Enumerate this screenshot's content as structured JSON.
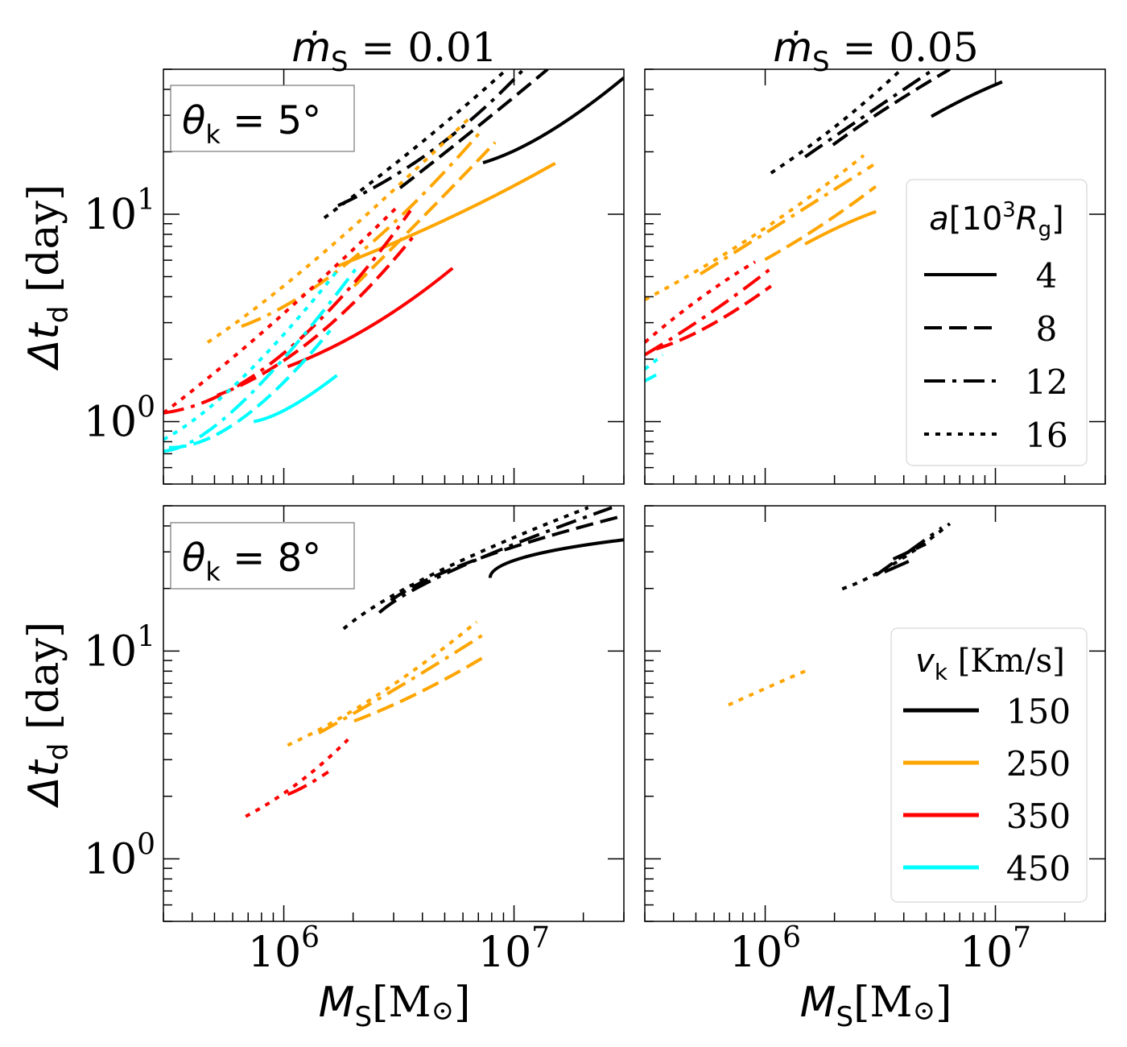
{
  "chart_data": {
    "type": "line",
    "layout": "2x2 grid",
    "shared_xlabel": "M_S[M_⊙]",
    "shared_ylabel": "Δt_d [day]",
    "xscale": "log",
    "yscale": "log",
    "xlim": [
      300000,
      30000000
    ],
    "ylim": [
      0.5,
      50
    ],
    "x_ticks": [
      {
        "value": 1000000,
        "label": "10",
        "exp": "6"
      },
      {
        "value": 10000000,
        "label": "10",
        "exp": "7"
      }
    ],
    "y_ticks": [
      {
        "value": 1,
        "label": "10",
        "exp": "0"
      },
      {
        "value": 10,
        "label": "10",
        "exp": "1"
      }
    ],
    "column_titles": [
      {
        "symbol": "ṁ",
        "sub": "S",
        "text": " = 0.01"
      },
      {
        "symbol": "ṁ",
        "sub": "S",
        "text": " = 0.05"
      }
    ],
    "row_labels": [
      {
        "symbol": "θ",
        "sub": "k",
        "text": " =  5°"
      },
      {
        "symbol": "θ",
        "sub": "k",
        "text": " =  8°"
      }
    ],
    "x_label": {
      "symbol": "M",
      "sub": "S",
      "text": "[M",
      "odot": "⊙",
      "close": "]"
    },
    "y_label": {
      "symbol": "Δt",
      "sub": "d",
      "text": " [day]"
    },
    "colors": {
      "150": "#000000",
      "250": "#FFA500",
      "350": "#FF0000",
      "450": "#00FFFF"
    },
    "linestyles": {
      "4": "solid",
      "8": "dashed",
      "12": "dashdot",
      "16": "dotted"
    },
    "legend_a": {
      "title_symbol": "a",
      "title_text": "[10",
      "title_exp": "3",
      "title_R": "R",
      "title_sub": "g",
      "title_close": "]",
      "placement": "center-right of top-right panel",
      "entries": [
        {
          "label": "4",
          "style": "solid"
        },
        {
          "label": "8",
          "style": "dashed"
        },
        {
          "label": "12",
          "style": "dashdot"
        },
        {
          "label": "16",
          "style": "dotted"
        }
      ]
    },
    "legend_v": {
      "title_symbol": "v",
      "title_sub": "k",
      "title_text": " [Km/s]",
      "placement": "lower-right of bottom-right panel",
      "entries": [
        {
          "label": "150",
          "color": "#000000"
        },
        {
          "label": "250",
          "color": "#FFA500"
        },
        {
          "label": "350",
          "color": "#FF0000"
        },
        {
          "label": "450",
          "color": "#00FFFF"
        }
      ]
    },
    "panels": [
      {
        "id": "theta5_m001",
        "series": [
          {
            "v": "150",
            "a": "4",
            "x": [
              7330000.0,
              14000000.0,
              30000000.0
            ],
            "y": [
              17.7,
              24.7,
              45.5
            ]
          },
          {
            "v": "150",
            "a": "8",
            "x": [
              3200000.0,
              6760000.0,
              14000000.0
            ],
            "y": [
              13.4,
              25.8,
              50
            ]
          },
          {
            "v": "150",
            "a": "12",
            "x": [
              1720000.0,
              4520000.0,
              11000000.0
            ],
            "y": [
              11.0,
              20.7,
              50
            ]
          },
          {
            "v": "150",
            "a": "16",
            "x": [
              1500000.0,
              3850000.0,
              9300000.0
            ],
            "y": [
              9.6,
              21.6,
              50
            ]
          },
          {
            "v": "250",
            "a": "4",
            "x": [
              1720000.0,
              5300000.0,
              15100000.0
            ],
            "y": [
              5.63,
              9.65,
              17.6
            ]
          },
          {
            "v": "250",
            "a": "8",
            "x": [
              2020000.0,
              4170000.0,
              8280000.0
            ],
            "y": [
              4.5,
              10.1,
              22.2
            ]
          },
          {
            "v": "250",
            "a": "12",
            "x": [
              655000.0,
              2020000.0,
              7330000.0
            ],
            "y": [
              2.88,
              6.17,
              25.8
            ]
          },
          {
            "v": "250",
            "a": "16",
            "x": [
              467000.0,
              1470000.0,
              6500000.0
            ],
            "y": [
              2.41,
              6.45,
              29.6
            ]
          },
          {
            "v": "350",
            "a": "4",
            "x": [
              1040000.0,
              2380000.0,
              5410000.0
            ],
            "y": [
              1.84,
              2.88,
              5.49
            ]
          },
          {
            "v": "350",
            "a": "8",
            "x": [
              514000.0,
              1350000.0,
              3620000.0
            ],
            "y": [
              1.34,
              2.52,
              7.71
            ]
          },
          {
            "v": "350",
            "a": "12",
            "x": [
              300000.0,
              980000.0,
              3550000.0
            ],
            "y": [
              1.1,
              2.1,
              10.4
            ]
          },
          {
            "v": "350",
            "a": "16",
            "x": [
              300000.0,
              904000.0,
              3150000.0
            ],
            "y": [
              1.1,
              3.01,
              11.0
            ]
          },
          {
            "v": "450",
            "a": "4",
            "x": [
              740000.0,
              1060000.0,
              1700000.0
            ],
            "y": [
              1.0,
              1.17,
              1.67
            ]
          },
          {
            "v": "450",
            "a": "8",
            "x": [
              317000.0,
              655000.0,
              1590000.0
            ],
            "y": [
              0.75,
              1.03,
              2.75
            ]
          },
          {
            "v": "450",
            "a": "12",
            "x": [
              300000.0,
              655000.0,
              2100000.0
            ],
            "y": [
              0.72,
              1.23,
              5.63
            ]
          },
          {
            "v": "450",
            "a": "16",
            "x": [
              300000.0,
              655000.0,
              1720000.0
            ],
            "y": [
              0.82,
              1.61,
              5.39
            ]
          }
        ]
      },
      {
        "id": "theta5_m005",
        "series": [
          {
            "v": "150",
            "a": "4",
            "x": [
              5270000.0,
              7450000.0,
              10700000.0
            ],
            "y": [
              29.6,
              36.3,
              43.5
            ]
          },
          {
            "v": "150",
            "a": "8",
            "x": [
              1970000.0,
              3340000.0,
              6340000.0
            ],
            "y": [
              21.6,
              32.3,
              50
            ]
          },
          {
            "v": "150",
            "a": "12",
            "x": [
              1490000.0,
              2840000.0,
              5400000.0
            ],
            "y": [
              18.9,
              30.9,
              50
            ]
          },
          {
            "v": "150",
            "a": "16",
            "x": [
              1060000.0,
              2060000.0,
              3910000.0
            ],
            "y": [
              15.8,
              27.0,
              50
            ]
          },
          {
            "v": "250",
            "a": "4",
            "x": [
              1490000.0,
              2160000.0,
              3030000.0
            ],
            "y": [
              7.18,
              8.83,
              10.3
            ]
          },
          {
            "v": "250",
            "a": "8",
            "x": [
              1000000.0,
              1750000.0,
              3020000.0
            ],
            "y": [
              6.05,
              8.83,
              13.6
            ]
          },
          {
            "v": "250",
            "a": "12",
            "x": [
              523000.0,
              1370000.0,
              2950000.0
            ],
            "y": [
              5.15,
              10.1,
              17.3
            ]
          },
          {
            "v": "250",
            "a": "16",
            "x": [
              300000.0,
              920000.0,
              2680000.0
            ],
            "y": [
              3.87,
              8.07,
              19.2
            ]
          },
          {
            "v": "350",
            "a": "8",
            "x": [
              336000.0,
              566000.0,
              1060000.0
            ],
            "y": [
              2.24,
              2.88,
              4.5
            ]
          },
          {
            "v": "350",
            "a": "12",
            "x": [
              300000.0,
              566000.0,
              1040000.0
            ],
            "y": [
              2.1,
              3.29,
              5.39
            ]
          },
          {
            "v": "350",
            "a": "16",
            "x": [
              300000.0,
              523000.0,
              904000.0
            ],
            "y": [
              2.41,
              3.94,
              5.89
            ]
          },
          {
            "v": "450",
            "a": "8",
            "x": [
              300000.0,
              336000.0
            ],
            "y": [
              1.57,
              1.68
            ]
          },
          {
            "v": "450",
            "a": "16",
            "x": [
              300000.0,
              359000.0
            ],
            "y": [
              1.79,
              2.1
            ]
          }
        ]
      },
      {
        "id": "theta8_m001",
        "series": [
          {
            "v": "150",
            "a": "4",
            "x": [
              7870000.0,
              11000000.0,
              30000000.0
            ],
            "y": [
              22.5,
              28.2,
              34.3
            ]
          },
          {
            "v": "150",
            "a": "8",
            "x": [
              2920000.0,
              6770000.0,
              30000000.0
            ],
            "y": [
              17.5,
              27.4,
              44.8
            ]
          },
          {
            "v": "150",
            "a": "12",
            "x": [
              2600000.0,
              5700000.0,
              26600000.0
            ],
            "y": [
              15.3,
              25.1,
              49
            ]
          },
          {
            "v": "150",
            "a": "16",
            "x": [
              1820000.0,
              4470000.0,
              21000000.0
            ],
            "y": [
              12.8,
              23.5,
              49
            ]
          },
          {
            "v": "250",
            "a": "8",
            "x": [
              2020000.0,
              3850000.0,
              7450000.0
            ],
            "y": [
              4.6,
              6.29,
              9.4
            ]
          },
          {
            "v": "250",
            "a": "12",
            "x": [
              1420000.0,
              3270000.0,
              7450000.0
            ],
            "y": [
              4.03,
              6.87,
              12.1
            ]
          },
          {
            "v": "250",
            "a": "16",
            "x": [
              1040000.0,
              2580000.0,
              6880000.0
            ],
            "y": [
              3.52,
              6.18,
              13.8
            ]
          },
          {
            "v": "350",
            "a": "12",
            "x": [
              1040000.0,
              1250000.0,
              1560000.0
            ],
            "y": [
              2.04,
              2.25,
              2.62
            ]
          },
          {
            "v": "350",
            "a": "16",
            "x": [
              683000.0,
              1150000.0,
              1900000.0
            ],
            "y": [
              1.6,
              2.31,
              3.75
            ]
          }
        ]
      },
      {
        "id": "theta8_m005",
        "series": [
          {
            "v": "150",
            "a": "4",
            "x": [
              3300000.0,
              4200000.0
            ],
            "y": [
              24.0,
              27.0
            ]
          },
          {
            "v": "150",
            "a": "8",
            "x": [
              3600000.0,
              4980000.0
            ],
            "y": [
              27.7,
              32.7
            ]
          },
          {
            "v": "150",
            "a": "12",
            "x": [
              3020000.0,
              5850000.0
            ],
            "y": [
              23.1,
              39.2
            ]
          },
          {
            "v": "150",
            "a": "16",
            "x": [
              2160000.0,
              3600000.0,
              6340000.0
            ],
            "y": [
              19.9,
              26.2,
              41.0
            ]
          },
          {
            "v": "250",
            "a": "16",
            "x": [
              693000.0,
              1000000.0,
              1490000.0
            ],
            "y": [
              5.5,
              6.6,
              8.0
            ]
          }
        ]
      }
    ]
  }
}
